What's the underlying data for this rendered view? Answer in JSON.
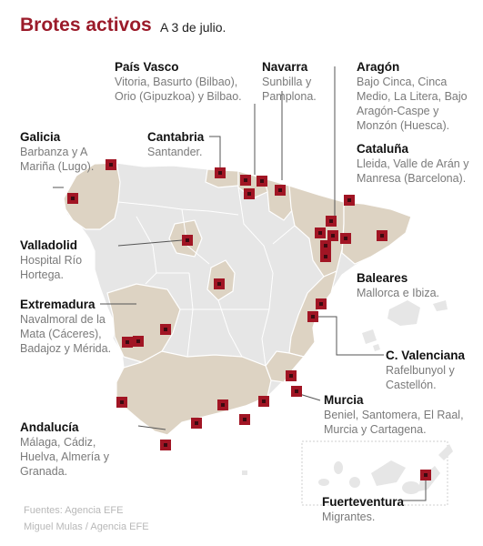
{
  "header": {
    "title": "Brotes activos",
    "date": "A 3 de julio."
  },
  "regions": [
    {
      "id": "pais-vasco",
      "name": "País Vasco",
      "desc": "Vitoria, Basurto (Bilbao), Orio (Gipuzkoa) y Bilbao."
    },
    {
      "id": "navarra",
      "name": "Navarra",
      "desc": "Sunbilla y Pamplona."
    },
    {
      "id": "aragon",
      "name": "Aragón",
      "desc": "Bajo Cinca, Cinca Medio, La Litera,  Bajo Aragón-Caspe y Monzón (Huesca)."
    },
    {
      "id": "galicia",
      "name": "Galicia",
      "desc": "Barbanza y A Mariña (Lugo)."
    },
    {
      "id": "cantabria",
      "name": "Cantabria",
      "desc": "Santander."
    },
    {
      "id": "cataluna",
      "name": "Cataluña",
      "desc": "Lleida, Valle de Arán y Manresa (Barcelona)."
    },
    {
      "id": "valladolid",
      "name": "Valladolid",
      "desc": "Hospital Río Hortega."
    },
    {
      "id": "baleares",
      "name": "Baleares",
      "desc": "Mallorca e Ibiza."
    },
    {
      "id": "extremadura",
      "name": "Extremadura",
      "desc": "Navalmoral de la Mata (Cáceres), Badajoz y Mérida."
    },
    {
      "id": "c-valenciana",
      "name": "C. Valenciana",
      "desc": "Rafelbunyol y Castellón."
    },
    {
      "id": "murcia",
      "name": "Murcia",
      "desc": "Beniel, Santomera, El Raal, Murcia y Cartagena."
    },
    {
      "id": "andalucia",
      "name": "Andalucía",
      "desc": "Málaga, Cádiz, Huelva, Almería y Granada."
    },
    {
      "id": "fuerteventura",
      "name": "Fuerteventura",
      "desc": "Migrantes."
    }
  ],
  "sources": {
    "line1": "Fuentes: Agencia EFE",
    "line2": "Miguel Mulas / Agencia EFE"
  },
  "colors": {
    "land": "#e6e6e6",
    "affected": "#ddd3c3",
    "marker": "#a11524",
    "border": "#ffffff",
    "leader": "#555555"
  },
  "marker_icon": "outbreak-square-icon"
}
